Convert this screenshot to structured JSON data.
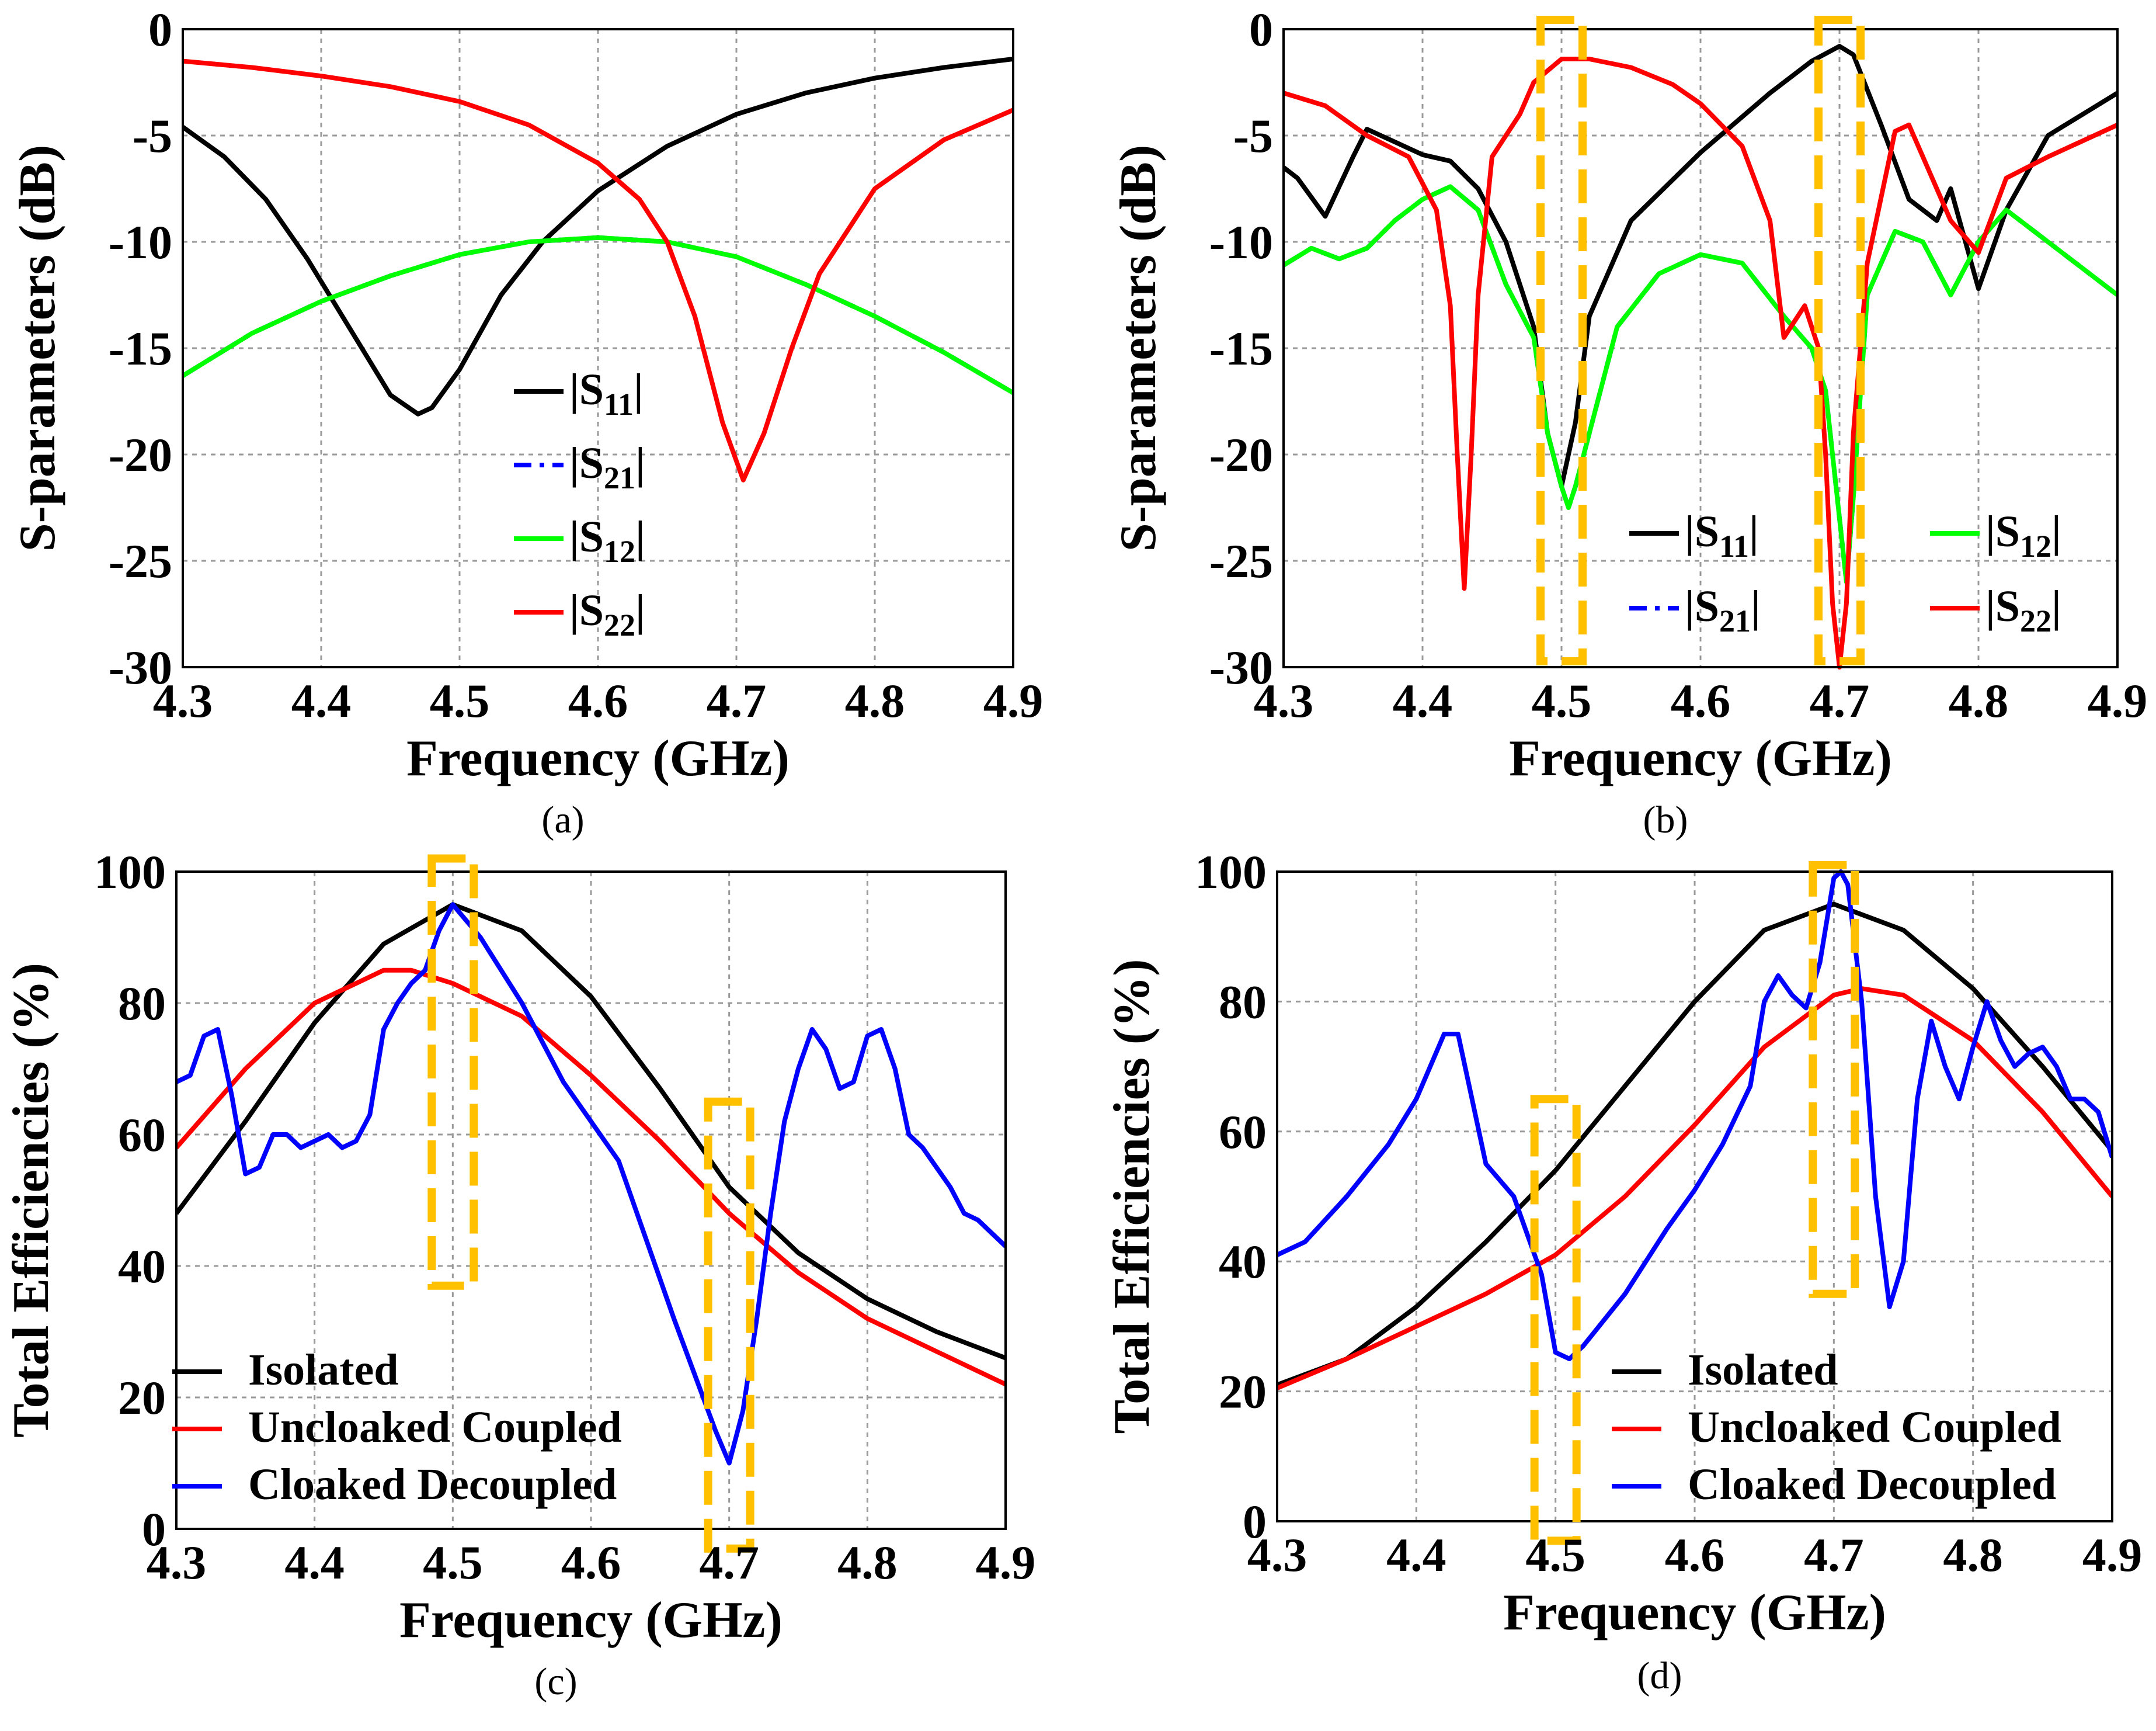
{
  "chart_data": [
    {
      "type": "line",
      "panel": "(a)",
      "xlabel": "Frequency (GHz)",
      "ylabel": "S-parameters (dB)",
      "xlim": [
        4.3,
        4.9
      ],
      "ylim": [
        -30,
        0
      ],
      "x_ticks": [
        "4.3",
        "4.4",
        "4.5",
        "4.6",
        "4.7",
        "4.8",
        "4.9"
      ],
      "y_ticks": [
        "0",
        "-5",
        "-10",
        "-15",
        "-20",
        "-25",
        "-30"
      ],
      "grid": true,
      "legend_position": "lower-middle",
      "series": [
        {
          "name": "|S11|",
          "legend_main": "|S",
          "legend_sub": "11",
          "legend_end": "|",
          "color": "#000000",
          "dash": "solid",
          "x": [
            4.3,
            4.33,
            4.36,
            4.39,
            4.42,
            4.45,
            4.47,
            4.48,
            4.5,
            4.53,
            4.56,
            4.6,
            4.65,
            4.7,
            4.75,
            4.8,
            4.85,
            4.9
          ],
          "y": [
            -4.6,
            -6.0,
            -8.0,
            -10.8,
            -14.0,
            -17.2,
            -18.1,
            -17.8,
            -16.0,
            -12.5,
            -10.0,
            -7.6,
            -5.5,
            -4.0,
            -3.0,
            -2.3,
            -1.8,
            -1.4
          ]
        },
        {
          "name": "|S21|",
          "legend_main": "|S",
          "legend_sub": "21",
          "legend_end": "|",
          "color": "#0000ff",
          "dash": "dashed",
          "x": [
            4.3,
            4.35,
            4.4,
            4.45,
            4.5,
            4.55,
            4.6,
            4.65,
            4.7,
            4.75,
            4.8,
            4.85,
            4.9
          ],
          "y": [
            -16.3,
            -14.3,
            -12.8,
            -11.6,
            -10.6,
            -10.0,
            -9.8,
            -10.0,
            -10.7,
            -12.0,
            -13.5,
            -15.2,
            -17.1
          ]
        },
        {
          "name": "|S12|",
          "legend_main": "|S",
          "legend_sub": "12",
          "legend_end": "|",
          "color": "#00ff00",
          "dash": "solid",
          "x": [
            4.3,
            4.35,
            4.4,
            4.45,
            4.5,
            4.55,
            4.6,
            4.65,
            4.7,
            4.75,
            4.8,
            4.85,
            4.9
          ],
          "y": [
            -16.3,
            -14.3,
            -12.8,
            -11.6,
            -10.6,
            -10.0,
            -9.8,
            -10.0,
            -10.7,
            -12.0,
            -13.5,
            -15.2,
            -17.1
          ]
        },
        {
          "name": "|S22|",
          "legend_main": "|S",
          "legend_sub": "22",
          "legend_end": "|",
          "color": "#ff0000",
          "dash": "solid",
          "x": [
            4.3,
            4.35,
            4.4,
            4.45,
            4.5,
            4.55,
            4.6,
            4.63,
            4.65,
            4.67,
            4.69,
            4.705,
            4.72,
            4.74,
            4.76,
            4.8,
            4.85,
            4.9
          ],
          "y": [
            -1.5,
            -1.8,
            -2.2,
            -2.7,
            -3.4,
            -4.5,
            -6.3,
            -8.0,
            -10.0,
            -13.5,
            -18.5,
            -21.2,
            -19.0,
            -15.0,
            -11.5,
            -7.5,
            -5.2,
            -3.8
          ]
        }
      ],
      "caption": "(a)"
    },
    {
      "type": "line",
      "panel": "(b)",
      "xlabel": "Frequency (GHz)",
      "ylabel": "S-parameters (dB)",
      "xlim": [
        4.3,
        4.9
      ],
      "ylim": [
        -30,
        0
      ],
      "x_ticks": [
        "4.3",
        "4.4",
        "4.5",
        "4.6",
        "4.7",
        "4.8",
        "4.9"
      ],
      "y_ticks": [
        "0",
        "-5",
        "-10",
        "-15",
        "-20",
        "-25",
        "-30"
      ],
      "grid": true,
      "legend_position": "lower-right",
      "highlight_regions": [
        [
          4.49,
          4.51
        ],
        [
          4.69,
          4.71
        ]
      ],
      "highlight_color": "#ffc000",
      "series": [
        {
          "name": "|S11|",
          "legend_main": "|S",
          "legend_sub": "11",
          "legend_end": "|",
          "color": "#000000",
          "dash": "solid",
          "x": [
            4.3,
            4.31,
            4.33,
            4.35,
            4.36,
            4.38,
            4.4,
            4.42,
            4.44,
            4.46,
            4.48,
            4.49,
            4.5,
            4.51,
            4.52,
            4.55,
            4.6,
            4.65,
            4.68,
            4.7,
            4.71,
            4.73,
            4.75,
            4.77,
            4.78,
            4.8,
            4.82,
            4.85,
            4.9
          ],
          "y": [
            -6.5,
            -7.0,
            -8.8,
            -6.0,
            -4.7,
            -5.3,
            -5.9,
            -6.2,
            -7.5,
            -10.0,
            -14.0,
            -19.0,
            -21.5,
            -18.5,
            -13.5,
            -9.0,
            -5.8,
            -3.0,
            -1.5,
            -0.8,
            -1.2,
            -4.5,
            -8.0,
            -9.0,
            -7.5,
            -12.2,
            -8.5,
            -5.0,
            -3.0
          ]
        },
        {
          "name": "|S21|",
          "legend_main": "|S",
          "legend_sub": "21",
          "legend_end": "|",
          "color": "#0000ff",
          "dash": "dashed",
          "x": [
            4.3,
            4.32,
            4.34,
            4.36,
            4.38,
            4.4,
            4.42,
            4.44,
            4.46,
            4.48,
            4.49,
            4.5,
            4.505,
            4.51,
            4.52,
            4.54,
            4.57,
            4.6,
            4.63,
            4.66,
            4.68,
            4.69,
            4.7,
            4.705,
            4.71,
            4.72,
            4.74,
            4.76,
            4.78,
            4.8,
            4.82,
            4.85,
            4.9
          ],
          "y": [
            -11.1,
            -10.3,
            -10.8,
            -10.3,
            -9.0,
            -8.0,
            -7.4,
            -8.5,
            -12.0,
            -14.5,
            -19.0,
            -21.5,
            -22.5,
            -21.5,
            -19.0,
            -14.0,
            -11.5,
            -10.6,
            -11.0,
            -13.5,
            -15.0,
            -17.0,
            -23.0,
            -26.0,
            -22.0,
            -12.5,
            -9.5,
            -10.0,
            -12.5,
            -10.0,
            -8.5,
            -10.0,
            -12.5
          ]
        },
        {
          "name": "|S12|",
          "legend_main": "|S",
          "legend_sub": "12",
          "legend_end": "|",
          "color": "#00ff00",
          "dash": "solid",
          "x": [
            4.3,
            4.32,
            4.34,
            4.36,
            4.38,
            4.4,
            4.42,
            4.44,
            4.46,
            4.48,
            4.49,
            4.5,
            4.505,
            4.51,
            4.52,
            4.54,
            4.57,
            4.6,
            4.63,
            4.66,
            4.68,
            4.69,
            4.7,
            4.705,
            4.71,
            4.72,
            4.74,
            4.76,
            4.78,
            4.8,
            4.82,
            4.85,
            4.9
          ],
          "y": [
            -11.1,
            -10.3,
            -10.8,
            -10.3,
            -9.0,
            -8.0,
            -7.4,
            -8.5,
            -12.0,
            -14.5,
            -19.0,
            -21.5,
            -22.5,
            -21.5,
            -19.0,
            -14.0,
            -11.5,
            -10.6,
            -11.0,
            -13.5,
            -15.0,
            -17.0,
            -23.0,
            -26.0,
            -22.0,
            -12.5,
            -9.5,
            -10.0,
            -12.5,
            -10.0,
            -8.5,
            -10.0,
            -12.5
          ]
        },
        {
          "name": "|S22|",
          "legend_main": "|S",
          "legend_sub": "22",
          "legend_end": "|",
          "color": "#ff0000",
          "dash": "solid",
          "x": [
            4.3,
            4.33,
            4.36,
            4.39,
            4.41,
            4.42,
            4.425,
            4.43,
            4.435,
            4.44,
            4.45,
            4.47,
            4.48,
            4.5,
            4.52,
            4.55,
            4.58,
            4.6,
            4.63,
            4.65,
            4.66,
            4.675,
            4.685,
            4.69,
            4.695,
            4.7,
            4.705,
            4.71,
            4.72,
            4.74,
            4.75,
            4.76,
            4.78,
            4.8,
            4.82,
            4.85,
            4.9
          ],
          "y": [
            -3.0,
            -3.6,
            -5.0,
            -6.0,
            -8.5,
            -13.0,
            -20.0,
            -26.3,
            -20.0,
            -12.5,
            -6.0,
            -4.0,
            -2.5,
            -1.4,
            -1.4,
            -1.8,
            -2.6,
            -3.5,
            -5.5,
            -9.0,
            -14.5,
            -13.0,
            -15.0,
            -20.0,
            -27.0,
            -30.0,
            -27.0,
            -19.0,
            -11.0,
            -4.8,
            -4.5,
            -6.0,
            -9.0,
            -10.5,
            -7.0,
            -6.0,
            -4.5
          ]
        }
      ],
      "caption": "(b)"
    },
    {
      "type": "line",
      "panel": "(c)",
      "xlabel": "Frequency (GHz)",
      "ylabel": "Total Efficiencies (%)",
      "xlim": [
        4.3,
        4.9
      ],
      "ylim": [
        0,
        100
      ],
      "x_ticks": [
        "4.3",
        "4.4",
        "4.5",
        "4.6",
        "4.7",
        "4.8",
        "4.9"
      ],
      "y_ticks": [
        "100",
        "80",
        "60",
        "40",
        "20",
        "0"
      ],
      "grid": true,
      "legend_position": "lower-left",
      "highlight_regions": [
        [
          4.49,
          4.51
        ],
        [
          4.69,
          4.71
        ]
      ],
      "highlight_color": "#ffc000",
      "series": [
        {
          "name": "Isolated",
          "color": "#000000",
          "dash": "solid",
          "x": [
            4.3,
            4.35,
            4.4,
            4.45,
            4.5,
            4.55,
            4.6,
            4.65,
            4.7,
            4.75,
            4.8,
            4.85,
            4.9
          ],
          "y": [
            48,
            62,
            77,
            89,
            95,
            91,
            81,
            67,
            52,
            42,
            35,
            30,
            26
          ]
        },
        {
          "name": "Uncloaked Coupled",
          "color": "#ff0000",
          "dash": "solid",
          "x": [
            4.3,
            4.35,
            4.4,
            4.45,
            4.47,
            4.5,
            4.55,
            4.6,
            4.65,
            4.7,
            4.75,
            4.8,
            4.85,
            4.9
          ],
          "y": [
            58,
            70,
            80,
            85,
            85,
            83,
            78,
            69,
            59,
            48,
            39,
            32,
            27,
            22
          ]
        },
        {
          "name": "Cloaked Decoupled",
          "color": "#0000ff",
          "dash": "solid",
          "x": [
            4.3,
            4.31,
            4.32,
            4.33,
            4.34,
            4.35,
            4.36,
            4.37,
            4.38,
            4.39,
            4.4,
            4.41,
            4.42,
            4.43,
            4.44,
            4.45,
            4.46,
            4.47,
            4.48,
            4.49,
            4.5,
            4.52,
            4.55,
            4.58,
            4.62,
            4.66,
            4.69,
            4.7,
            4.71,
            4.72,
            4.73,
            4.74,
            4.75,
            4.76,
            4.77,
            4.78,
            4.79,
            4.8,
            4.81,
            4.82,
            4.83,
            4.84,
            4.85,
            4.86,
            4.87,
            4.88,
            4.89,
            4.9
          ],
          "y": [
            68,
            69,
            75,
            76,
            66,
            54,
            55,
            60,
            60,
            58,
            59,
            60,
            58,
            59,
            63,
            76,
            80,
            83,
            85,
            91,
            95,
            90,
            80,
            68,
            56,
            32,
            15,
            10,
            18,
            32,
            48,
            62,
            70,
            76,
            73,
            67,
            68,
            75,
            76,
            70,
            60,
            58,
            55,
            52,
            48,
            47,
            45,
            43
          ]
        }
      ],
      "caption": "(c)"
    },
    {
      "type": "line",
      "panel": "(d)",
      "xlabel": "Frequency (GHz)",
      "ylabel": "Total Efficiencies (%)",
      "xlim": [
        4.3,
        4.9
      ],
      "ylim": [
        0,
        100
      ],
      "x_ticks": [
        "4.3",
        "4.4",
        "4.5",
        "4.6",
        "4.7",
        "4.8",
        "4.9"
      ],
      "y_ticks": [
        "100",
        "80",
        "60",
        "40",
        "20",
        "0"
      ],
      "grid": true,
      "legend_position": "lower-right",
      "highlight_regions": [
        [
          4.49,
          4.51
        ],
        [
          4.69,
          4.71
        ]
      ],
      "highlight_color": "#ffc000",
      "series": [
        {
          "name": "Isolated",
          "color": "#000000",
          "dash": "solid",
          "x": [
            4.3,
            4.35,
            4.4,
            4.45,
            4.5,
            4.55,
            4.6,
            4.65,
            4.7,
            4.75,
            4.8,
            4.85,
            4.9
          ],
          "y": [
            21,
            25,
            33,
            43,
            54,
            67,
            80,
            91,
            95,
            91,
            82,
            70,
            57
          ]
        },
        {
          "name": "Uncloaked Coupled",
          "color": "#ff0000",
          "dash": "solid",
          "x": [
            4.3,
            4.35,
            4.4,
            4.45,
            4.5,
            4.55,
            4.6,
            4.65,
            4.7,
            4.72,
            4.75,
            4.8,
            4.85,
            4.9
          ],
          "y": [
            20.5,
            25,
            30,
            35,
            41,
            50,
            61,
            73,
            81,
            82,
            81,
            74,
            63,
            50
          ]
        },
        {
          "name": "Cloaked Decoupled",
          "color": "#0000ff",
          "dash": "solid",
          "x": [
            4.3,
            4.32,
            4.35,
            4.38,
            4.4,
            4.42,
            4.43,
            4.44,
            4.45,
            4.47,
            4.49,
            4.5,
            4.51,
            4.52,
            4.55,
            4.58,
            4.6,
            4.62,
            4.64,
            4.65,
            4.66,
            4.67,
            4.68,
            4.69,
            4.7,
            4.705,
            4.71,
            4.72,
            4.73,
            4.74,
            4.75,
            4.76,
            4.77,
            4.78,
            4.79,
            4.8,
            4.81,
            4.82,
            4.83,
            4.84,
            4.85,
            4.86,
            4.87,
            4.88,
            4.89,
            4.9
          ],
          "y": [
            41,
            43,
            50,
            58,
            65,
            75,
            75,
            65,
            55,
            50,
            38,
            26,
            25,
            27,
            35,
            45,
            51,
            58,
            67,
            80,
            84,
            81,
            79,
            86,
            99,
            100,
            98,
            80,
            50,
            33,
            40,
            65,
            77,
            70,
            65,
            73,
            80,
            74,
            70,
            72,
            73,
            70,
            65,
            65,
            63,
            56
          ]
        }
      ],
      "caption": "(d)"
    }
  ]
}
